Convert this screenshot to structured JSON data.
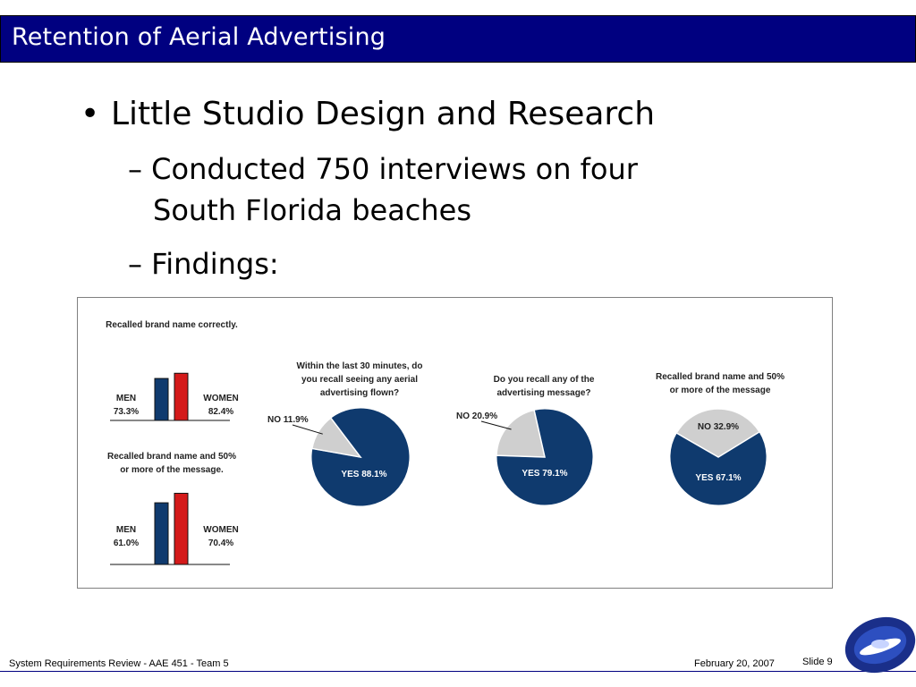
{
  "slide": {
    "title": "Retention of Aerial Advertising",
    "bullet": "Little Studio Design and Research",
    "sub_bullets": {
      "first_line1": "– Conducted 750 interviews on four",
      "first_line2": "South Florida beaches",
      "second": "– Findings:"
    }
  },
  "footer": {
    "left": "System Requirements Review - AAE 451 - Team 5",
    "date": "February 20, 2007",
    "slide_label": "Slide 9"
  },
  "colors": {
    "title_bg": "#000080",
    "men_bar": "#0f3a6e",
    "women_bar": "#d41a1a",
    "pie_yes": "#0f3a6e",
    "pie_no": "#cfcfcf"
  },
  "chart_data": [
    {
      "type": "bar",
      "title": "Recalled brand name correctly.",
      "categories": [
        "MEN",
        "WOMEN"
      ],
      "value_labels": [
        "73.3%",
        "82.4%"
      ],
      "values": [
        73.3,
        82.4
      ]
    },
    {
      "type": "bar",
      "title_line1": "Recalled brand name and 50%",
      "title_line2": "or more of the message.",
      "categories": [
        "MEN",
        "WOMEN"
      ],
      "value_labels": [
        "61.0%",
        "70.4%"
      ],
      "values": [
        61.0,
        70.4
      ]
    },
    {
      "type": "pie",
      "title_lines": [
        "Within the last 30 minutes, do",
        "you recall seeing any aerial",
        "advertising flown?"
      ],
      "slices": [
        {
          "label": "YES 88.1%",
          "value": 88.1
        },
        {
          "label": "NO 11.9%",
          "value": 11.9
        }
      ]
    },
    {
      "type": "pie",
      "title_lines": [
        "Do you recall any of the",
        "advertising message?"
      ],
      "slices": [
        {
          "label": "YES 79.1%",
          "value": 79.1
        },
        {
          "label": "NO 20.9%",
          "value": 20.9
        }
      ]
    },
    {
      "type": "pie",
      "title_lines": [
        "Recalled brand name and 50%",
        "or more of the message"
      ],
      "slices": [
        {
          "label": "YES 67.1%",
          "value": 67.1
        },
        {
          "label": "NO 32.9%",
          "value": 32.9
        }
      ]
    }
  ]
}
